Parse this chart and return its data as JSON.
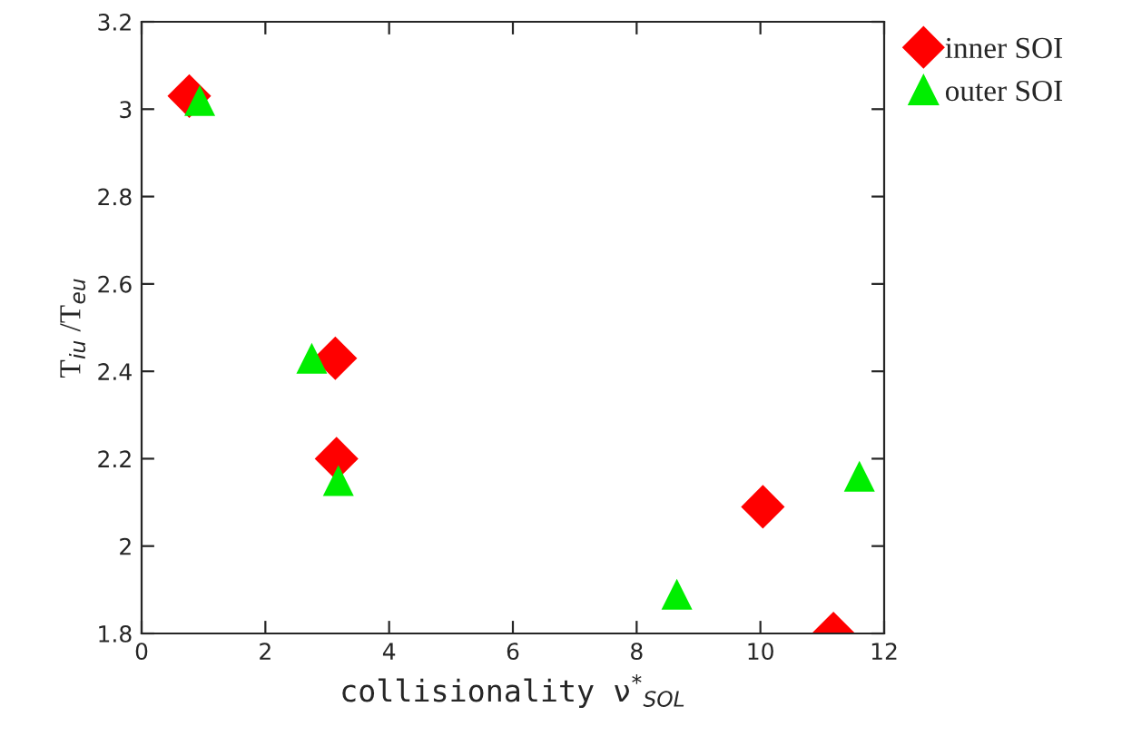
{
  "chart_data": {
    "type": "scatter",
    "xlabel": "collisionality ν$^{*}$$_{SOL}$",
    "ylabel": "T$_{iu}$ /T$_{eu}$",
    "series": [
      {
        "name": "inner SOI",
        "color": "#ff0000",
        "marker": "diamond",
        "x": [
          0.77,
          3.13,
          3.15,
          10.04,
          11.18
        ],
        "values": [
          3.03,
          2.43,
          2.2,
          2.09,
          1.8
        ]
      },
      {
        "name": "outer SOI",
        "color": "#00ee00",
        "marker": "triangle",
        "x": [
          0.94,
          2.75,
          3.18,
          8.65,
          11.6
        ],
        "values": [
          3.02,
          2.43,
          2.15,
          1.89,
          2.16
        ]
      }
    ],
    "xlim": [
      0,
      12
    ],
    "xticks": [
      0,
      2,
      4,
      6,
      8,
      10,
      12
    ],
    "ylim": [
      1.8,
      3.2
    ],
    "yticks": [
      1.8,
      2,
      2.2,
      2.4,
      2.6,
      2.8,
      3,
      3.2
    ],
    "grid": false,
    "legend": "top right"
  }
}
